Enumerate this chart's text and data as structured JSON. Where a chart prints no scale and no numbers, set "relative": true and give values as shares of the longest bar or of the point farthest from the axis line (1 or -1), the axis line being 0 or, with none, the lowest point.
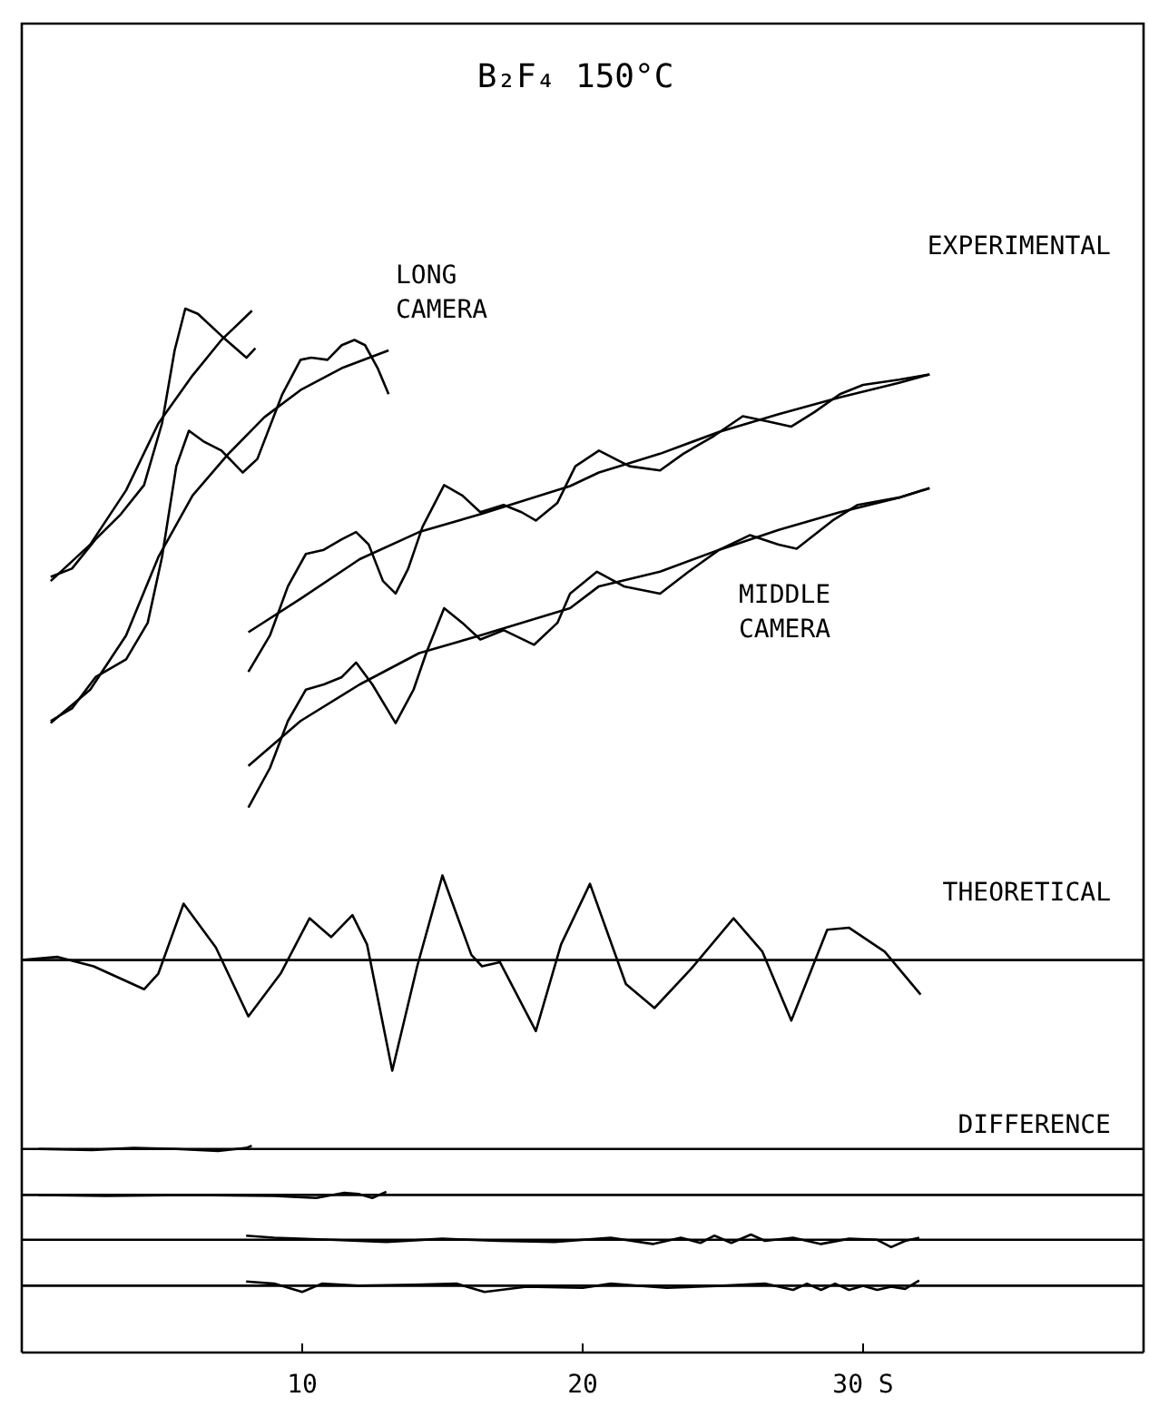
{
  "chart_data": {
    "type": "line",
    "title": "B₂F₄ 150°C",
    "relative": true,
    "tick_labels": "x",
    "marker": "none",
    "line_style": "solid",
    "xlim": [
      0,
      40
    ],
    "xticks": [
      10,
      20,
      {
        "value": 30,
        "label": "30 S"
      }
    ],
    "annotations": [
      "EXPERIMENTAL",
      "LONG\nCAMERA",
      "MIDDLE\nCAMERA",
      "THEORETICAL",
      "DIFFERENCE"
    ],
    "ref_lines": [
      {
        "axis": "y",
        "value": 0.376,
        "color": "#000000"
      },
      {
        "axis": "y",
        "value": 0.195,
        "color": "#000000"
      },
      {
        "axis": "y",
        "value": 0.151,
        "color": "#000000"
      },
      {
        "axis": "y",
        "value": 0.108,
        "color": "#000000"
      },
      {
        "axis": "y",
        "value": 0.064,
        "color": "#000000"
      }
    ],
    "series": [
      {
        "color": "#000000",
        "x": [
          1.03,
          1.79,
          2.63,
          3.53,
          4.36,
          5.0,
          5.45,
          5.83,
          6.28,
          7.12,
          8.01,
          8.33
        ],
        "values": [
          0.743,
          0.751,
          0.779,
          0.803,
          0.831,
          0.89,
          0.96,
          1.0,
          0.995,
          0.974,
          0.953,
          0.962
        ]
      },
      {
        "color": "#000000",
        "x": [
          1.03,
          2.44,
          3.72,
          4.87,
          6.09,
          7.12,
          8.21
        ],
        "values": [
          0.739,
          0.774,
          0.826,
          0.89,
          0.936,
          0.97,
          0.998
        ]
      },
      {
        "color": "#000000",
        "x": [
          1.03,
          1.79,
          2.63,
          3.72,
          4.49,
          5.0,
          5.51,
          5.96,
          6.47,
          7.12,
          7.88,
          8.4,
          9.29,
          9.94,
          10.32,
          10.9,
          11.41,
          11.86,
          12.24,
          12.69,
          13.08
        ],
        "values": [
          0.605,
          0.617,
          0.647,
          0.664,
          0.699,
          0.762,
          0.849,
          0.883,
          0.873,
          0.864,
          0.843,
          0.856,
          0.918,
          0.951,
          0.953,
          0.951,
          0.965,
          0.97,
          0.965,
          0.943,
          0.918
        ]
      },
      {
        "color": "#000000",
        "x": [
          1.03,
          2.44,
          3.72,
          4.87,
          6.09,
          7.37,
          8.65,
          9.94,
          11.41,
          13.08
        ],
        "values": [
          0.603,
          0.635,
          0.687,
          0.762,
          0.821,
          0.861,
          0.896,
          0.922,
          0.943,
          0.96
        ]
      },
      {
        "color": "#000000",
        "x": [
          8.08,
          8.85,
          9.49,
          10.13,
          10.77,
          11.41,
          11.92,
          12.37,
          12.88,
          13.33,
          13.78,
          14.29,
          15.06,
          15.71,
          16.35,
          17.18,
          17.82,
          18.33,
          19.1,
          19.74,
          20.58,
          21.67,
          22.76,
          23.59,
          24.68,
          25.71,
          26.6,
          27.44,
          28.27,
          29.17,
          30.0,
          31.28,
          32.37
        ],
        "values": [
          0.652,
          0.687,
          0.734,
          0.765,
          0.769,
          0.779,
          0.786,
          0.774,
          0.739,
          0.727,
          0.751,
          0.791,
          0.831,
          0.821,
          0.805,
          0.812,
          0.805,
          0.797,
          0.814,
          0.849,
          0.864,
          0.849,
          0.845,
          0.861,
          0.878,
          0.897,
          0.892,
          0.887,
          0.901,
          0.918,
          0.927,
          0.932,
          0.937
        ]
      },
      {
        "color": "#000000",
        "x": [
          8.08,
          9.94,
          12.05,
          14.17,
          16.35,
          19.55,
          20.58,
          22.76,
          24.87,
          26.99,
          29.17,
          31.28,
          32.37
        ],
        "values": [
          0.69,
          0.722,
          0.76,
          0.786,
          0.803,
          0.83,
          0.843,
          0.861,
          0.882,
          0.899,
          0.915,
          0.929,
          0.937
        ]
      },
      {
        "color": "#000000",
        "x": [
          8.08,
          8.85,
          9.49,
          10.13,
          10.77,
          11.41,
          11.92,
          12.5,
          13.33,
          13.97,
          14.42,
          15.06,
          15.71,
          16.35,
          17.18,
          18.27,
          19.1,
          19.55,
          20.51,
          21.47,
          22.76,
          23.78,
          24.87,
          25.96,
          26.99,
          27.63,
          28.91,
          29.81,
          31.28,
          32.37
        ],
        "values": [
          0.522,
          0.56,
          0.605,
          0.635,
          0.64,
          0.647,
          0.661,
          0.64,
          0.603,
          0.635,
          0.67,
          0.713,
          0.699,
          0.683,
          0.692,
          0.678,
          0.699,
          0.727,
          0.748,
          0.734,
          0.727,
          0.748,
          0.769,
          0.783,
          0.774,
          0.77,
          0.797,
          0.812,
          0.819,
          0.828
        ]
      },
      {
        "color": "#000000",
        "x": [
          8.08,
          9.94,
          12.05,
          14.17,
          16.35,
          19.55,
          20.58,
          22.76,
          24.87,
          26.99,
          29.17,
          31.28,
          32.37
        ],
        "values": [
          0.562,
          0.605,
          0.64,
          0.67,
          0.687,
          0.713,
          0.734,
          0.748,
          0.769,
          0.788,
          0.805,
          0.819,
          0.828
        ]
      },
      {
        "color": "#000000",
        "x": [
          0,
          1.28,
          2.56,
          4.36,
          4.87,
          5.77,
          6.92,
          8.08,
          9.23,
          10.26,
          11.03,
          11.79,
          12.31,
          13.21,
          14.1,
          15.0,
          16.03,
          16.41,
          17.05,
          18.33,
          19.23,
          20.26,
          21.54,
          22.56,
          23.85,
          25.38,
          26.41,
          27.44,
          28.72,
          29.49,
          30.77,
          32.05
        ],
        "values": [
          0.376,
          0.379,
          0.37,
          0.348,
          0.363,
          0.43,
          0.388,
          0.322,
          0.363,
          0.416,
          0.398,
          0.419,
          0.391,
          0.27,
          0.37,
          0.457,
          0.381,
          0.37,
          0.374,
          0.308,
          0.391,
          0.449,
          0.353,
          0.33,
          0.367,
          0.416,
          0.384,
          0.318,
          0.405,
          0.407,
          0.384,
          0.343
        ]
      },
      {
        "color": "#000000",
        "x": [
          0.6,
          2.5,
          4,
          5.5,
          7,
          8,
          8.2
        ],
        "values": [
          0.195,
          0.194,
          0.196,
          0.195,
          0.193,
          0.196,
          0.198
        ]
      },
      {
        "color": "#000000",
        "x": [
          0.6,
          3,
          6,
          9,
          10.5,
          11.5,
          12,
          12.5,
          13
        ],
        "values": [
          0.151,
          0.15,
          0.151,
          0.15,
          0.148,
          0.153,
          0.152,
          0.148,
          0.154
        ]
      },
      {
        "color": "#000000",
        "x": [
          8,
          9,
          11,
          13,
          15,
          17,
          19,
          21,
          22.5,
          23.5,
          24.2,
          24.7,
          25.3,
          26,
          26.5,
          27.5,
          28.5,
          29.5,
          30.5,
          31,
          31.5,
          32
        ],
        "values": [
          0.112,
          0.11,
          0.108,
          0.106,
          0.109,
          0.107,
          0.106,
          0.11,
          0.104,
          0.11,
          0.105,
          0.112,
          0.105,
          0.113,
          0.107,
          0.11,
          0.104,
          0.109,
          0.108,
          0.101,
          0.107,
          0.11
        ]
      },
      {
        "color": "#000000",
        "x": [
          8,
          9,
          10,
          10.7,
          12,
          14,
          15.5,
          16.5,
          18,
          20,
          21,
          23,
          25,
          26.5,
          27.5,
          28,
          28.5,
          29,
          29.5,
          30,
          30.5,
          31,
          31.5,
          32
        ],
        "values": [
          0.068,
          0.066,
          0.058,
          0.066,
          0.064,
          0.065,
          0.066,
          0.058,
          0.063,
          0.062,
          0.066,
          0.062,
          0.064,
          0.066,
          0.06,
          0.066,
          0.06,
          0.066,
          0.06,
          0.064,
          0.06,
          0.063,
          0.061,
          0.069
        ]
      }
    ]
  }
}
